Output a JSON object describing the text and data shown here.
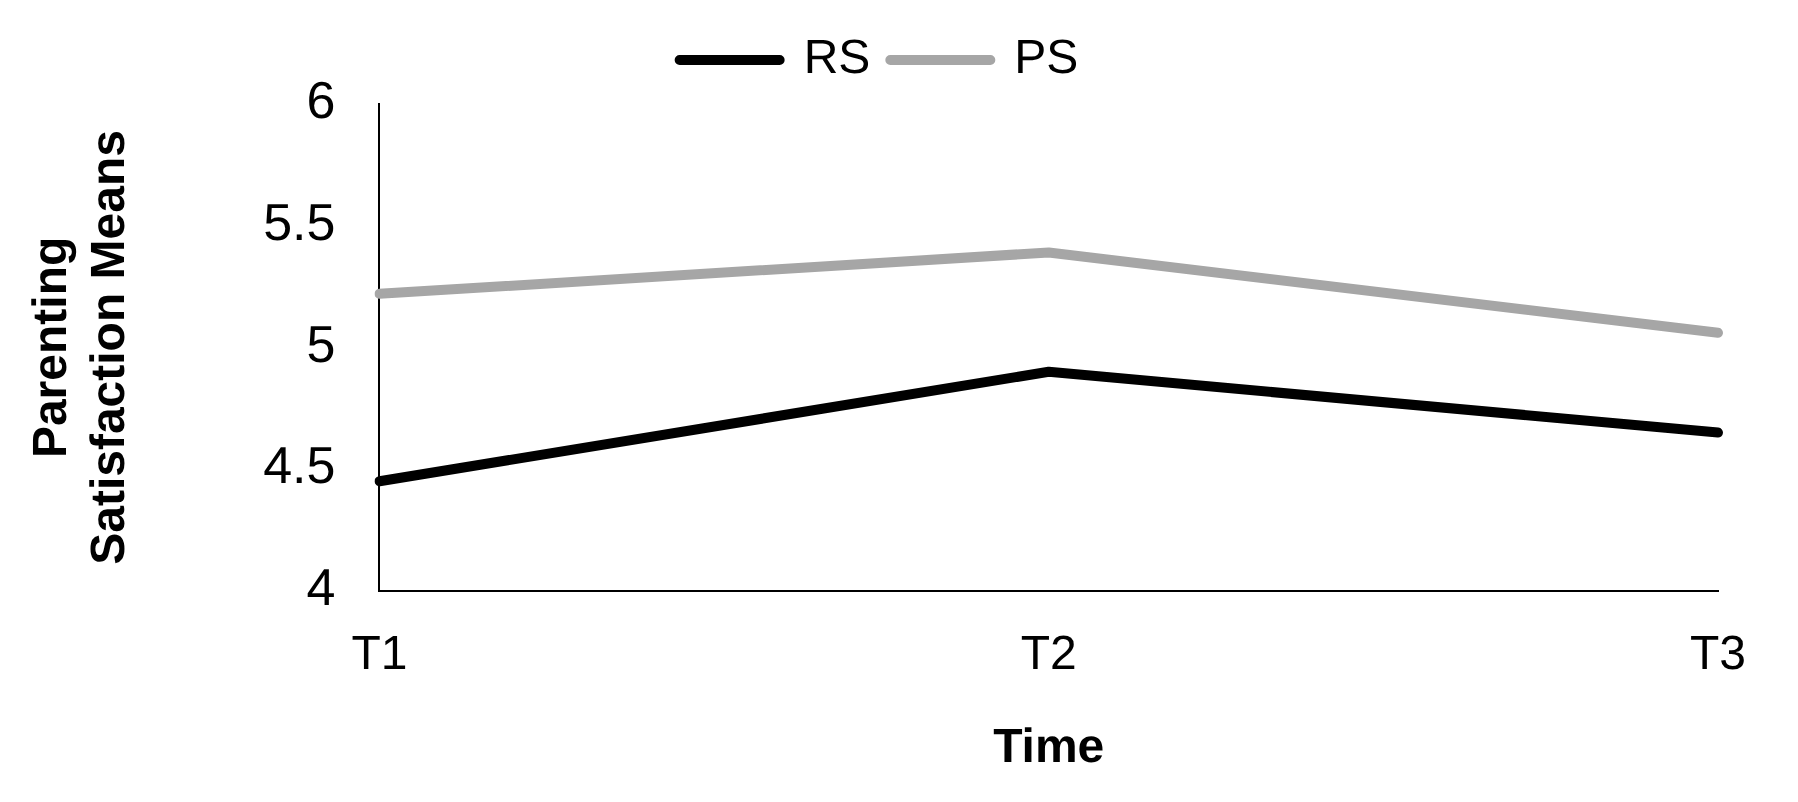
{
  "chart_data": {
    "type": "line",
    "xlabel": "Time",
    "ylabel": "Parenting Satisfaction Means",
    "categories": [
      "T1",
      "T2",
      "T3"
    ],
    "series": [
      {
        "name": "RS",
        "color": "#000000",
        "values": [
          4.45,
          4.9,
          4.65
        ]
      },
      {
        "name": "PS",
        "color": "#a6a6a6",
        "values": [
          5.22,
          5.39,
          5.06
        ]
      }
    ],
    "ylim": [
      4,
      6
    ],
    "yticks": [
      4,
      4.5,
      5,
      5.5,
      6
    ],
    "grid": false,
    "legend": "top",
    "marker": "none",
    "line_style": "solid"
  }
}
